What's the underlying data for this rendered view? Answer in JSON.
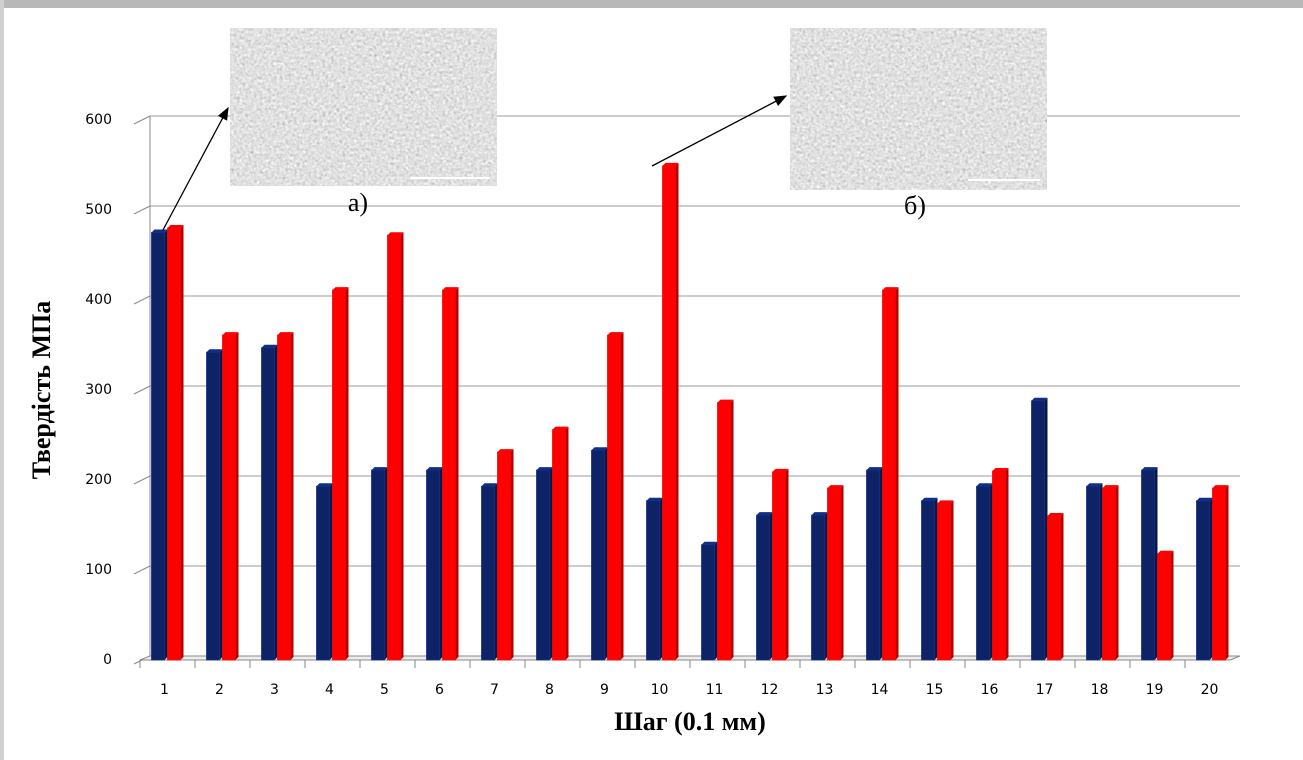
{
  "chart_data": {
    "type": "bar",
    "xlabel": "Шаг (0.1 мм)",
    "ylabel": "Твердість МПа",
    "annotations": [
      "а)",
      "б)"
    ],
    "categories": [
      "1",
      "2",
      "3",
      "4",
      "5",
      "6",
      "7",
      "8",
      "9",
      "10",
      "11",
      "12",
      "13",
      "14",
      "15",
      "16",
      "17",
      "18",
      "19",
      "20"
    ],
    "series": [
      {
        "color": "#0d2366",
        "values": [
          475,
          342,
          347,
          193,
          211,
          211,
          193,
          211,
          233,
          177,
          128,
          161,
          161,
          211,
          177,
          193,
          288,
          193,
          211,
          177
        ]
      },
      {
        "color": "#ff0000",
        "values": [
          480,
          361,
          361,
          411,
          472,
          411,
          231,
          256,
          361,
          549,
          286,
          209,
          191,
          411,
          174,
          210,
          160,
          191,
          118,
          191
        ]
      }
    ],
    "ylim": [
      0,
      600
    ],
    "yticks": [
      0,
      100,
      200,
      300,
      400,
      500,
      600
    ],
    "grid": true
  }
}
